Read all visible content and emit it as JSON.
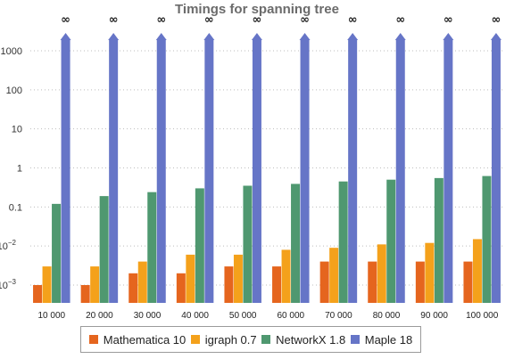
{
  "chart_data": {
    "type": "bar",
    "title": "Timings for spanning tree",
    "xlabel": "",
    "ylabel": "",
    "yscale": "log",
    "ylim": [
      0.0006,
      3000
    ],
    "yticks": [
      {
        "value": 0.001,
        "base": "10",
        "exp": "−3"
      },
      {
        "value": 0.01,
        "base": "10",
        "exp": "−2"
      },
      {
        "value": 0.1,
        "label": "0.1"
      },
      {
        "value": 1,
        "label": "1"
      },
      {
        "value": 10,
        "label": "10"
      },
      {
        "value": 100,
        "label": "100"
      },
      {
        "value": 1000,
        "label": "1000"
      }
    ],
    "grid": "horizontal dotted",
    "legend_position": "bottom",
    "categories": [
      "10 000",
      "20 000",
      "30 000",
      "40 000",
      "50 000",
      "60 000",
      "70 000",
      "80 000",
      "90 000",
      "100 000"
    ],
    "overflow_label": "∞",
    "series": [
      {
        "name": "Mathematica 10",
        "color": "#e5651e",
        "values": [
          0.001,
          0.001,
          0.002,
          0.002,
          0.003,
          0.003,
          0.004,
          0.004,
          0.004,
          0.004
        ]
      },
      {
        "name": "igraph 0.7",
        "color": "#f4a11b",
        "values": [
          0.003,
          0.003,
          0.004,
          0.006,
          0.006,
          0.008,
          0.009,
          0.011,
          0.012,
          0.015
        ]
      },
      {
        "name": "NetworkX 1.8",
        "color": "#4f9870",
        "values": [
          0.12,
          0.19,
          0.24,
          0.3,
          0.35,
          0.39,
          0.45,
          0.5,
          0.55,
          0.62
        ]
      },
      {
        "name": "Maple 18",
        "color": "#6675c7",
        "values": [
          "∞",
          "∞",
          "∞",
          "∞",
          "∞",
          "∞",
          "∞",
          "∞",
          "∞",
          "∞"
        ]
      }
    ]
  }
}
